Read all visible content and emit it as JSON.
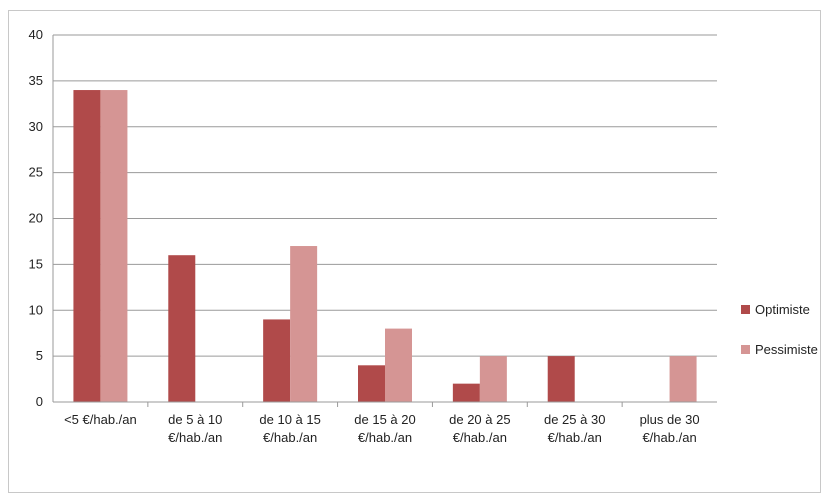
{
  "chart_data": {
    "type": "bar",
    "categories": [
      [
        "<5 €/hab./an"
      ],
      [
        "de 5 à 10",
        "€/hab./an"
      ],
      [
        "de 10 à 15",
        "€/hab./an"
      ],
      [
        "de 15 à 20",
        "€/hab./an"
      ],
      [
        "de 20 à 25",
        "€/hab./an"
      ],
      [
        "de 25 à 30",
        "€/hab./an"
      ],
      [
        "plus de 30",
        "€/hab./an"
      ]
    ],
    "series": [
      {
        "name": "Optimiste",
        "values": [
          34,
          16,
          9,
          4,
          2,
          5,
          0
        ],
        "color": "#b04a4a"
      },
      {
        "name": "Pessimiste",
        "values": [
          34,
          0,
          17,
          8,
          5,
          0,
          5
        ],
        "color": "#d59594"
      }
    ],
    "ylim": [
      0,
      40
    ],
    "yticks": [
      0,
      5,
      10,
      15,
      20,
      25,
      30,
      35,
      40
    ],
    "grid": true,
    "legend_position": "right",
    "title": "",
    "xlabel": "",
    "ylabel": ""
  }
}
